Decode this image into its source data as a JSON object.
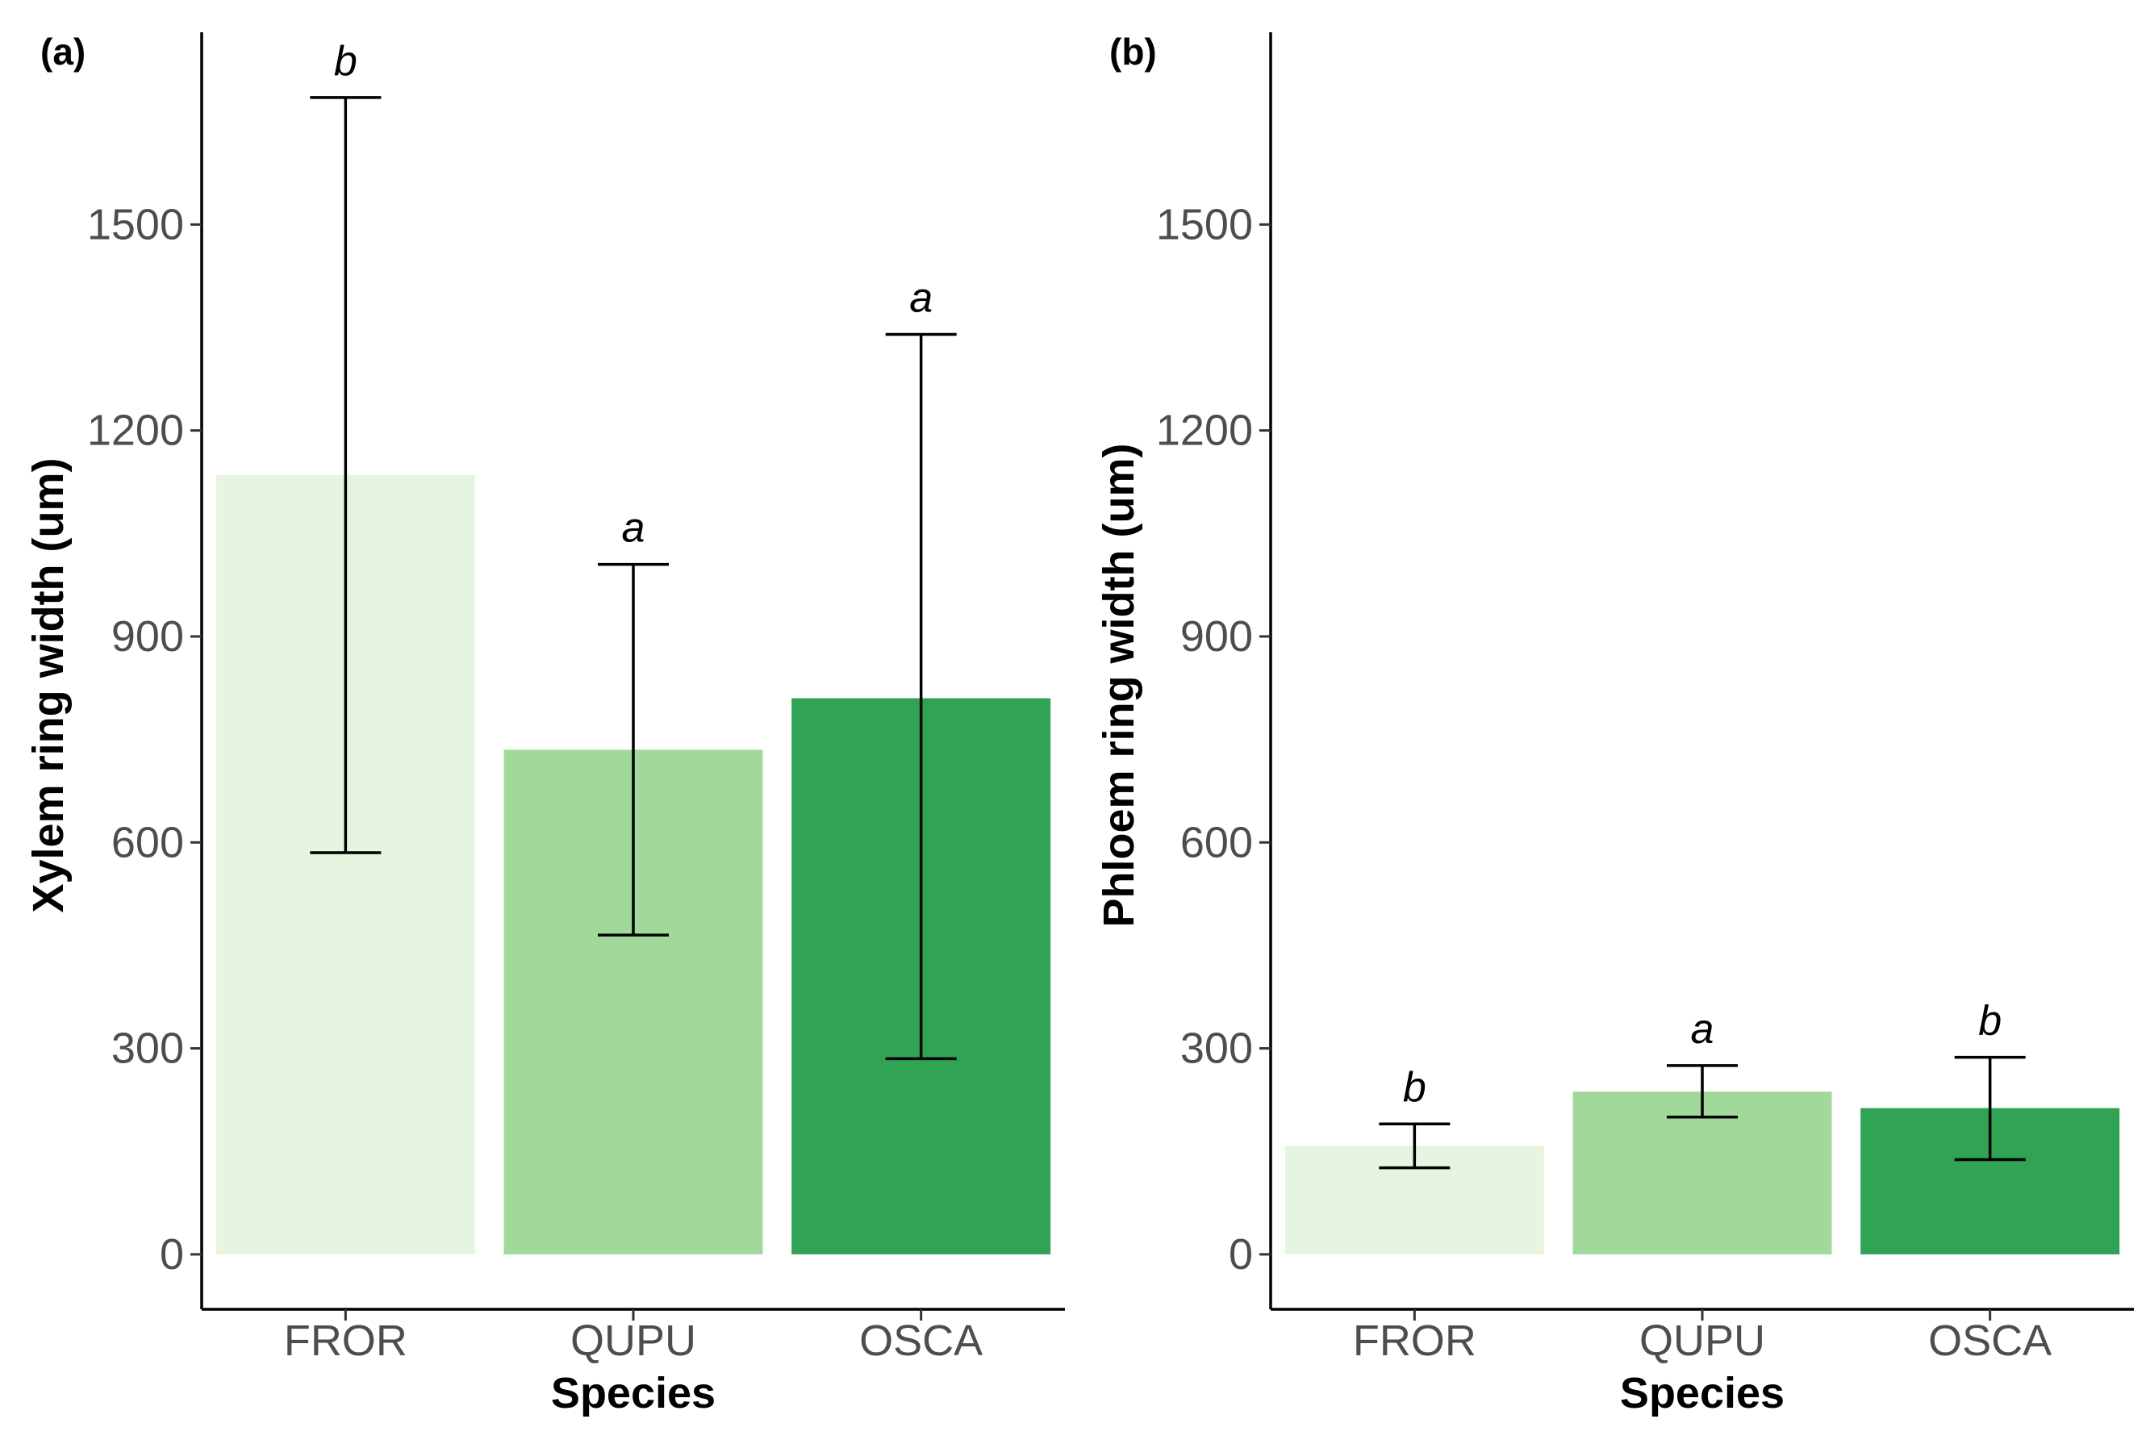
{
  "chart_data": [
    {
      "type": "bar",
      "panel_label": "(a)",
      "xlabel": "Species",
      "ylabel": "Xylem ring width (um)",
      "categories": [
        "FROR",
        "QUPU",
        "OSCA"
      ],
      "values": [
        1135,
        735,
        810
      ],
      "error_low": [
        585,
        465,
        285
      ],
      "error_high": [
        1685,
        1005,
        1340
      ],
      "significance": [
        "b",
        "a",
        "a"
      ],
      "bar_colors": [
        "#e5f5e0",
        "#a1d99b",
        "#31a354"
      ],
      "ylim": [
        -80,
        1780
      ],
      "yticks": [
        0,
        300,
        600,
        900,
        1200,
        1500
      ],
      "grid": false,
      "legend": "none"
    },
    {
      "type": "bar",
      "panel_label": "(b)",
      "xlabel": "Species",
      "ylabel": "Phloem ring width (um)",
      "categories": [
        "FROR",
        "QUPU",
        "OSCA"
      ],
      "values": [
        158,
        237,
        213
      ],
      "error_low": [
        126,
        200,
        138
      ],
      "error_high": [
        190,
        275,
        287
      ],
      "significance": [
        "b",
        "a",
        "b"
      ],
      "bar_colors": [
        "#e5f5e0",
        "#a1d99b",
        "#31a354"
      ],
      "ylim": [
        -80,
        1780
      ],
      "yticks": [
        0,
        300,
        600,
        900,
        1200,
        1500
      ],
      "grid": false,
      "legend": "none"
    }
  ]
}
